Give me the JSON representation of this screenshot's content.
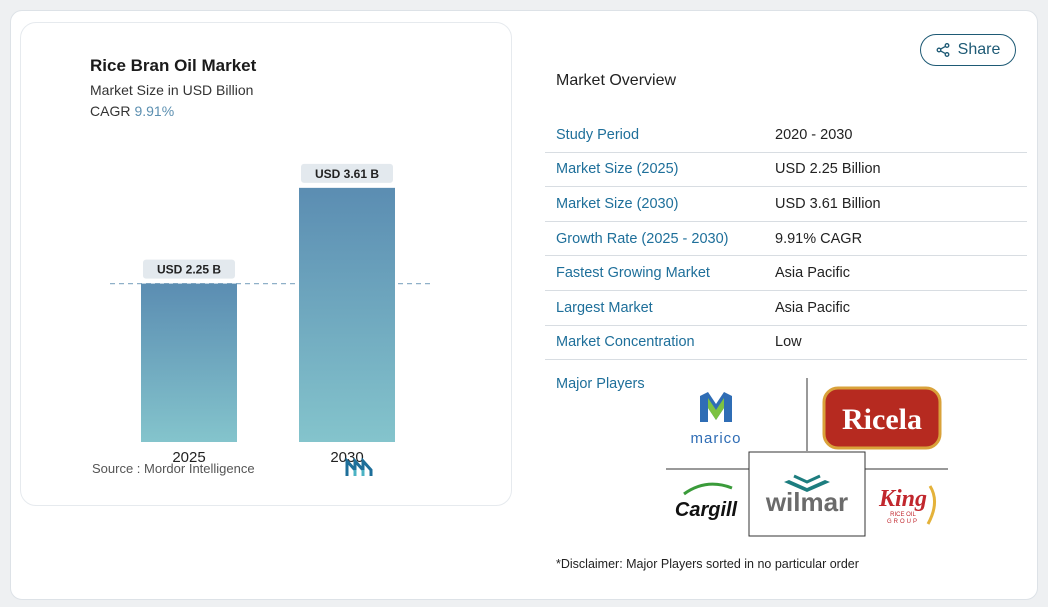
{
  "chart_card": {
    "title": "Rice Bran Oil Market",
    "subtitle": "Market Size in USD Billion",
    "cagr_label": "CAGR",
    "cagr_value": "9.91%",
    "source_label": "Source :",
    "source_value": "Mordor Intelligence"
  },
  "chart_data": {
    "type": "bar",
    "categories": [
      "2025",
      "2030"
    ],
    "values": [
      2.25,
      3.61
    ],
    "data_labels": [
      "USD 2.25 B",
      "USD 3.61 B"
    ],
    "title": "Rice Bran Oil Market",
    "ylabel": "Market Size in USD Billion",
    "reference_line": 2.25,
    "grid": false,
    "colors": {
      "bar_top": "#5b8db2",
      "bar_bottom": "#84c4cc",
      "label_bg": "#e3e9ee",
      "ref_line": "#8fb0c8"
    }
  },
  "share": {
    "label": "Share",
    "icon": "share-icon"
  },
  "overview": {
    "title": "Market Overview",
    "rows": [
      {
        "label": "Study Period",
        "value": "2020 - 2030"
      },
      {
        "label": "Market Size (2025)",
        "value": "USD 2.25 Billion"
      },
      {
        "label": "Market Size (2030)",
        "value": "USD 3.61 Billion"
      },
      {
        "label": "Growth Rate (2025 - 2030)",
        "value": "9.91% CAGR"
      },
      {
        "label": "Fastest Growing Market",
        "value": "Asia Pacific"
      },
      {
        "label": "Largest Market",
        "value": "Asia Pacific"
      },
      {
        "label": "Market Concentration",
        "value": "Low"
      }
    ],
    "players_label": "Major Players",
    "players": [
      "marico",
      "Ricela",
      "Cargill",
      "wilmar",
      "King"
    ],
    "king_sub1": "RICE OIL",
    "king_sub2": "GROUP",
    "disclaimer": "*Disclaimer: Major Players sorted in no particular order"
  },
  "colors": {
    "accent": "#1e6f9a",
    "button": "#1e5a75"
  }
}
